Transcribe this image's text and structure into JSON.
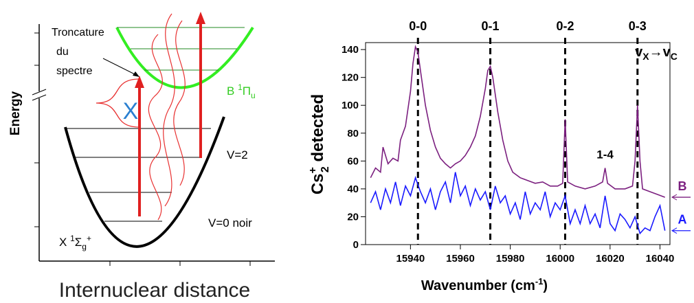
{
  "diagram": {
    "energy_label": "Energy",
    "distance_label": "Internuclear distance",
    "truncation_label": [
      "Troncature",
      "du",
      "spectre"
    ],
    "upper_state": {
      "base": "B ",
      "sup": "1",
      "main": "Π",
      "sub": "u"
    },
    "lower_state": {
      "base": "X ",
      "sup": "1",
      "main": "Σ",
      "sub": "g",
      "sup2": "+"
    },
    "level_v2": "V=2",
    "level_v0": "V=0 noir",
    "blocked_mark": "X"
  },
  "chart_data": {
    "type": "line",
    "x_label": {
      "main": "Wavenumber (cm",
      "sup": "-1",
      "end": ")"
    },
    "y_label": {
      "base": "Cs",
      "sup": "+",
      "sub": "2",
      "rest": " detected"
    },
    "xlim": [
      15922,
      16044
    ],
    "ylim": [
      0,
      145
    ],
    "xticks": [
      15940,
      15960,
      15980,
      16000,
      16020,
      16040
    ],
    "yticks": [
      0,
      20,
      40,
      60,
      80,
      100,
      120,
      140
    ],
    "grid": false,
    "peaks": [
      {
        "label": "0-0",
        "x": 15943
      },
      {
        "label": "0-1",
        "x": 15972
      },
      {
        "label": "0-2",
        "x": 16002
      },
      {
        "label": "0-3",
        "x": 16031
      }
    ],
    "transition_label": [
      "v",
      "X",
      "→v",
      "C"
    ],
    "annotation": {
      "text": "1-4",
      "x": 16018,
      "y": 58
    },
    "series": [
      {
        "name": "B",
        "color": "#7b1f7f",
        "x": [
          15924,
          15926,
          15928,
          15929,
          15931,
          15933,
          15935,
          15936,
          15938,
          15940,
          15941,
          15942,
          15943,
          15944,
          15946,
          15948,
          15950,
          15952,
          15954,
          15956,
          15958,
          15960,
          15962,
          15964,
          15966,
          15968,
          15970,
          15971,
          15972,
          15973,
          15975,
          15977,
          15979,
          15981,
          15984,
          15987,
          15990,
          15993,
          15996,
          15999,
          16001,
          16002,
          16003,
          16006,
          16010,
          16014,
          16017,
          16018,
          16019,
          16022,
          16026,
          16029,
          16030,
          16031,
          16032,
          16033,
          16036,
          16039,
          16042
        ],
        "values": [
          48,
          55,
          52,
          70,
          58,
          62,
          60,
          75,
          85,
          110,
          130,
          142,
          138,
          125,
          100,
          82,
          70,
          62,
          58,
          55,
          58,
          60,
          64,
          70,
          78,
          92,
          112,
          125,
          128,
          120,
          95,
          75,
          60,
          52,
          48,
          46,
          44,
          45,
          42,
          42,
          44,
          90,
          45,
          42,
          40,
          42,
          45,
          55,
          44,
          40,
          40,
          42,
          60,
          100,
          60,
          40,
          38,
          36,
          34
        ]
      },
      {
        "name": "A",
        "color": "#1a1aff",
        "x": [
          15924,
          15926,
          15928,
          15930,
          15932,
          15934,
          15936,
          15938,
          15940,
          15942,
          15944,
          15946,
          15948,
          15950,
          15952,
          15954,
          15956,
          15958,
          15960,
          15962,
          15964,
          15966,
          15968,
          15970,
          15972,
          15974,
          15976,
          15978,
          15980,
          15982,
          15984,
          15986,
          15988,
          15990,
          15992,
          15994,
          15996,
          15998,
          16000,
          16002,
          16004,
          16006,
          16008,
          16010,
          16012,
          16014,
          16016,
          16018,
          16020,
          16022,
          16024,
          16026,
          16028,
          16030,
          16032,
          16034,
          16036,
          16038,
          16040,
          16042
        ],
        "values": [
          30,
          38,
          25,
          40,
          30,
          45,
          28,
          42,
          35,
          48,
          38,
          30,
          40,
          25,
          38,
          45,
          30,
          52,
          35,
          42,
          28,
          40,
          32,
          38,
          25,
          42,
          30,
          35,
          22,
          30,
          18,
          38,
          22,
          30,
          25,
          38,
          20,
          30,
          25,
          35,
          15,
          25,
          15,
          28,
          15,
          22,
          12,
          35,
          15,
          10,
          22,
          18,
          12,
          20,
          8,
          12,
          10,
          20,
          28,
          10
        ]
      }
    ]
  }
}
